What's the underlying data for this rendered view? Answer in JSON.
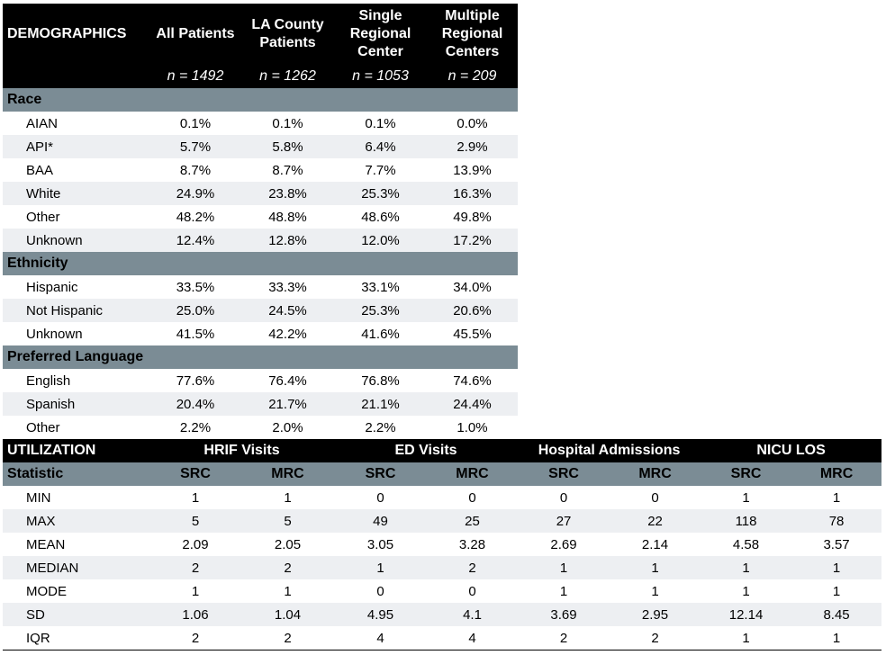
{
  "demographics": {
    "title": "DEMOGRAPHICS",
    "columns": [
      {
        "line1": "All Patients",
        "line2": "",
        "line3": "",
        "n": "n = 1492"
      },
      {
        "line1": "LA County",
        "line2": "Patients",
        "line3": "",
        "n": "n = 1262"
      },
      {
        "line1": "Single",
        "line2": "Regional",
        "line3": "Center",
        "n": "n = 1053"
      },
      {
        "line1": "Multiple",
        "line2": "Regional",
        "line3": "Centers",
        "n": "n = 209"
      }
    ],
    "race": {
      "label": "Race",
      "rows": [
        {
          "label": "AIAN",
          "values": [
            "0.1%",
            "0.1%",
            "0.1%",
            "0.0%"
          ]
        },
        {
          "label": "API*",
          "values": [
            "5.7%",
            "5.8%",
            "6.4%",
            "2.9%"
          ]
        },
        {
          "label": "BAA",
          "values": [
            "8.7%",
            "8.7%",
            "7.7%",
            "13.9%"
          ]
        },
        {
          "label": "White",
          "values": [
            "24.9%",
            "23.8%",
            "25.3%",
            "16.3%"
          ]
        },
        {
          "label": "Other",
          "values": [
            "48.2%",
            "48.8%",
            "48.6%",
            "49.8%"
          ]
        },
        {
          "label": "Unknown",
          "values": [
            "12.4%",
            "12.8%",
            "12.0%",
            "17.2%"
          ]
        }
      ]
    },
    "ethnicity": {
      "label": "Ethnicity",
      "rows": [
        {
          "label": "Hispanic",
          "values": [
            "33.5%",
            "33.3%",
            "33.1%",
            "34.0%"
          ]
        },
        {
          "label": "Not Hispanic",
          "values": [
            "25.0%",
            "24.5%",
            "25.3%",
            "20.6%"
          ]
        },
        {
          "label": "Unknown",
          "values": [
            "41.5%",
            "42.2%",
            "41.6%",
            "45.5%"
          ]
        }
      ]
    },
    "language": {
      "label": "Preferred Language",
      "rows": [
        {
          "label": "English",
          "values": [
            "77.6%",
            "76.4%",
            "76.8%",
            "74.6%"
          ]
        },
        {
          "label": "Spanish",
          "values": [
            "20.4%",
            "21.7%",
            "21.1%",
            "24.4%"
          ]
        },
        {
          "label": "Other",
          "values": [
            "2.2%",
            "2.0%",
            "2.2%",
            "1.0%"
          ]
        }
      ]
    }
  },
  "utilization": {
    "title": "UTILIZATION",
    "groups": [
      "HRIF Visits",
      "ED Visits",
      "Hospital Admissions",
      "NICU LOS"
    ],
    "stat_label": "Statistic",
    "sub_columns": [
      "SRC",
      "MRC",
      "SRC",
      "MRC",
      "SRC",
      "MRC",
      "SRC",
      "MRC"
    ],
    "rows": [
      {
        "label": "MIN",
        "values": [
          "1",
          "1",
          "0",
          "0",
          "0",
          "0",
          "1",
          "1"
        ]
      },
      {
        "label": "MAX",
        "values": [
          "5",
          "5",
          "49",
          "25",
          "27",
          "22",
          "118",
          "78"
        ]
      },
      {
        "label": "MEAN",
        "values": [
          "2.09",
          "2.05",
          "3.05",
          "3.28",
          "2.69",
          "2.14",
          "4.58",
          "3.57"
        ]
      },
      {
        "label": "MEDIAN",
        "values": [
          "2",
          "2",
          "1",
          "2",
          "1",
          "1",
          "1",
          "1"
        ]
      },
      {
        "label": "MODE",
        "values": [
          "1",
          "1",
          "0",
          "0",
          "1",
          "1",
          "1",
          "1"
        ]
      },
      {
        "label": "SD",
        "values": [
          "1.06",
          "1.04",
          "4.95",
          "4.1",
          "3.69",
          "2.95",
          "12.14",
          "8.45"
        ]
      },
      {
        "label": "IQR",
        "values": [
          "2",
          "2",
          "4",
          "4",
          "2",
          "2",
          "1",
          "1"
        ]
      }
    ]
  }
}
